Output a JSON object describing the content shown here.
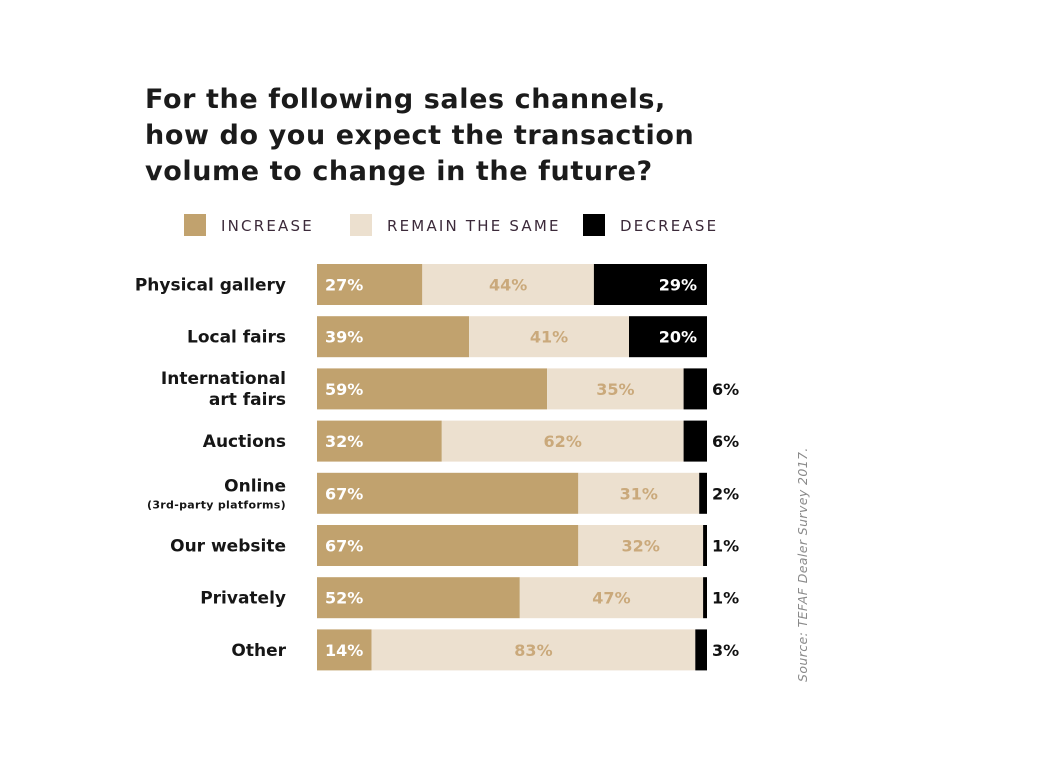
{
  "chart_data": {
    "type": "bar",
    "orientation": "horizontal",
    "stacked": true,
    "title_lines": [
      "For the following sales channels,",
      "how do you expect the transaction",
      "volume to change in the future?"
    ],
    "categories": [
      [
        "Physical gallery"
      ],
      [
        "Local fairs"
      ],
      [
        "International",
        "art fairs"
      ],
      [
        "Auctions"
      ],
      [
        "Online",
        "(3rd-party platforms)"
      ],
      [
        "Our website"
      ],
      [
        "Privately"
      ],
      [
        "Other"
      ]
    ],
    "series": [
      {
        "name": "INCREASE",
        "color": "#c1a26e",
        "label_color": "#ffffff",
        "values": [
          27,
          39,
          59,
          32,
          67,
          67,
          52,
          14
        ]
      },
      {
        "name": "REMAIN THE SAME",
        "color": "#ece0cf",
        "label_color": "#caa97b",
        "values": [
          44,
          41,
          35,
          62,
          31,
          32,
          47,
          83
        ]
      },
      {
        "name": "DECREASE",
        "color": "#000000",
        "label_color": "#ffffff",
        "values": [
          29,
          20,
          6,
          6,
          2,
          1,
          1,
          3
        ]
      }
    ],
    "value_suffix": "%",
    "xlim": [
      0,
      100
    ],
    "grid": false,
    "legend_position": "top",
    "source": "Source: TEFAF Dealer Survey 2017."
  }
}
